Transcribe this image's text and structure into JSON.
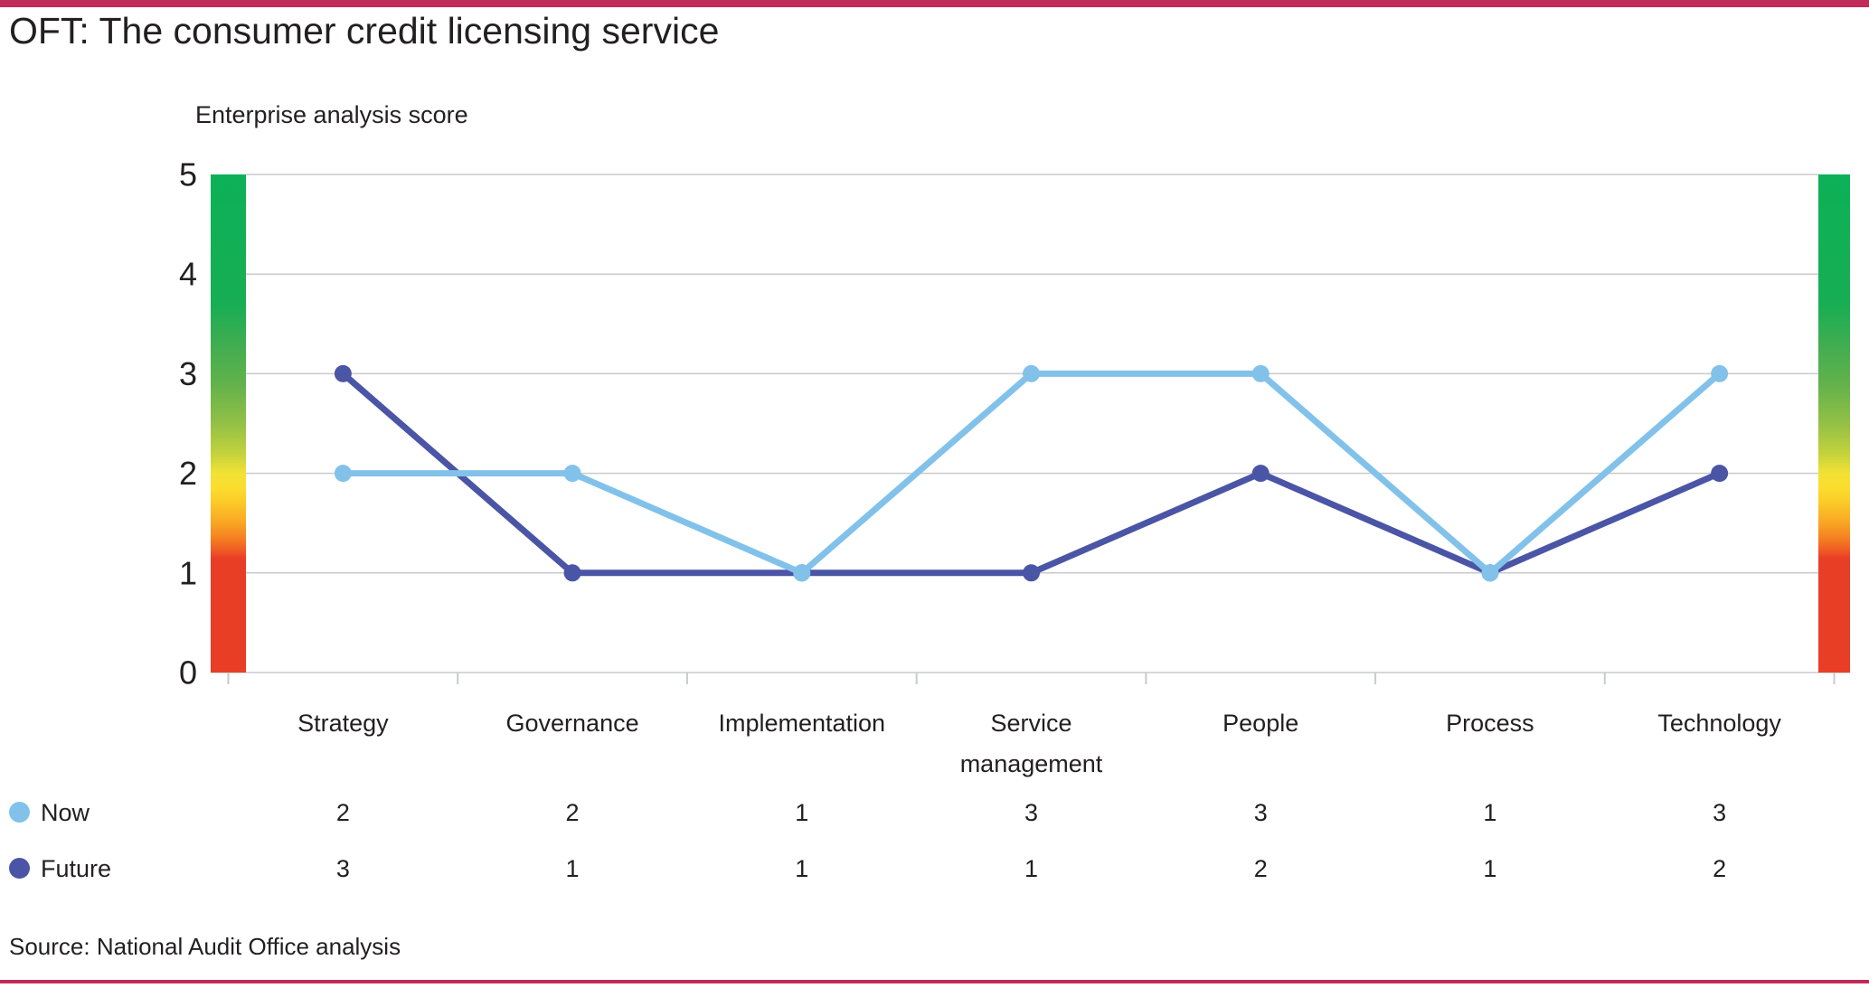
{
  "page": {
    "title": "OFT: The consumer credit licensing service",
    "source": "Source: National Audit Office analysis",
    "accent_color": "#C12B57",
    "text_color": "#231F20",
    "background_color": "#FFFFFF"
  },
  "chart_data": {
    "type": "line",
    "title": "Enterprise analysis score",
    "categories": [
      "Strategy",
      "Governance",
      "Implementation",
      "Service management",
      "People",
      "Process",
      "Technology"
    ],
    "category_label_lines": [
      [
        "Strategy"
      ],
      [
        "Governance"
      ],
      [
        "Implementation"
      ],
      [
        "Service",
        "management"
      ],
      [
        "People"
      ],
      [
        "Process"
      ],
      [
        "Technology"
      ]
    ],
    "series": [
      {
        "name": "Now",
        "color": "#82C2EA",
        "values": [
          2,
          2,
          1,
          3,
          3,
          1,
          3
        ]
      },
      {
        "name": "Future",
        "color": "#4A55A5",
        "values": [
          3,
          1,
          1,
          1,
          2,
          1,
          2
        ]
      }
    ],
    "ylim": [
      0,
      5
    ],
    "yticks": [
      "0",
      "1",
      "2",
      "3",
      "4",
      "5"
    ],
    "grid": true,
    "gridline_color": "#C9CACC",
    "legend_position": "bottom table with one value column per category",
    "marker": "filled circle",
    "scale_bars": {
      "description": "vertical red-to-green rating gradient bars flanking the plot",
      "gradient_stops": [
        {
          "pos": 0.0,
          "color": "#0CB157"
        },
        {
          "pos": 0.26,
          "color": "#17AE54"
        },
        {
          "pos": 0.34,
          "color": "#3FAD50"
        },
        {
          "pos": 0.42,
          "color": "#62B24C"
        },
        {
          "pos": 0.5,
          "color": "#93C046"
        },
        {
          "pos": 0.56,
          "color": "#C3D23C"
        },
        {
          "pos": 0.6,
          "color": "#F2E234"
        },
        {
          "pos": 0.63,
          "color": "#FBDD2E"
        },
        {
          "pos": 0.66,
          "color": "#FBC928"
        },
        {
          "pos": 0.7,
          "color": "#F9A524"
        },
        {
          "pos": 0.73,
          "color": "#F58121"
        },
        {
          "pos": 0.755,
          "color": "#F05A25"
        },
        {
          "pos": 0.77,
          "color": "#E93E26"
        },
        {
          "pos": 1.0,
          "color": "#E93E26"
        }
      ]
    }
  }
}
